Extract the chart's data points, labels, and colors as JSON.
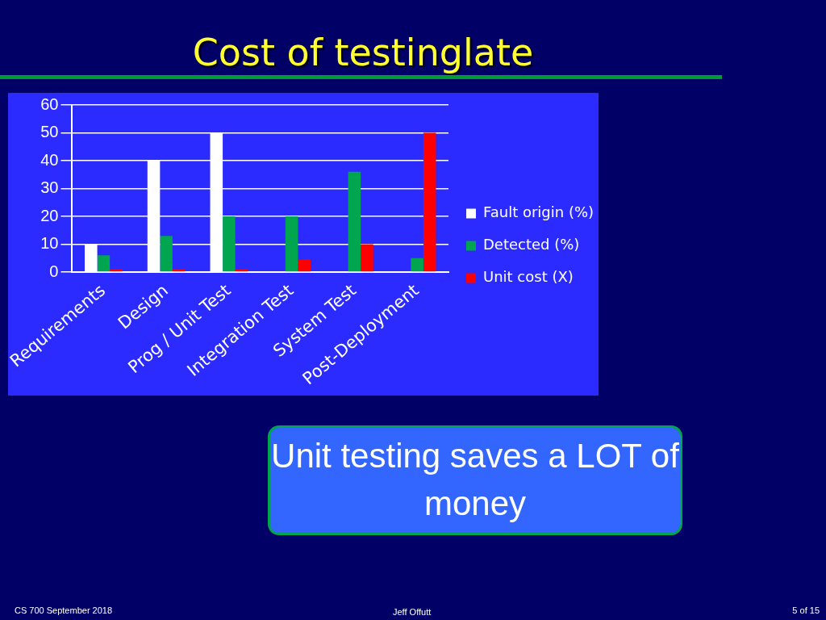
{
  "chart_data": {
    "type": "bar",
    "title": "Cost of testinglate",
    "categories": [
      "Requirements",
      "Design",
      "Prog / Unit Test",
      "Integration Test",
      "System Test",
      "Post-Deployment"
    ],
    "series": [
      {
        "name": "Fault origin (%)",
        "color": "#ffffff",
        "values": [
          10,
          40,
          50,
          0,
          0,
          0
        ]
      },
      {
        "name": "Detected (%)",
        "color": "#00a550",
        "values": [
          6,
          13,
          20,
          20,
          36,
          5
        ]
      },
      {
        "name": "Unit cost (X)",
        "color": "#ff0000",
        "values": [
          1,
          1,
          1,
          4.5,
          10,
          50
        ]
      }
    ],
    "ylim": [
      0,
      60
    ],
    "yticks": [
      0,
      10,
      20,
      30,
      40,
      50,
      60
    ],
    "grid": "y",
    "legend": "right",
    "annotations": [
      "Unit testing saves a LOT of money",
      "CS 700 September 2018",
      "Jeff Offutt",
      "5 of 15"
    ]
  }
}
